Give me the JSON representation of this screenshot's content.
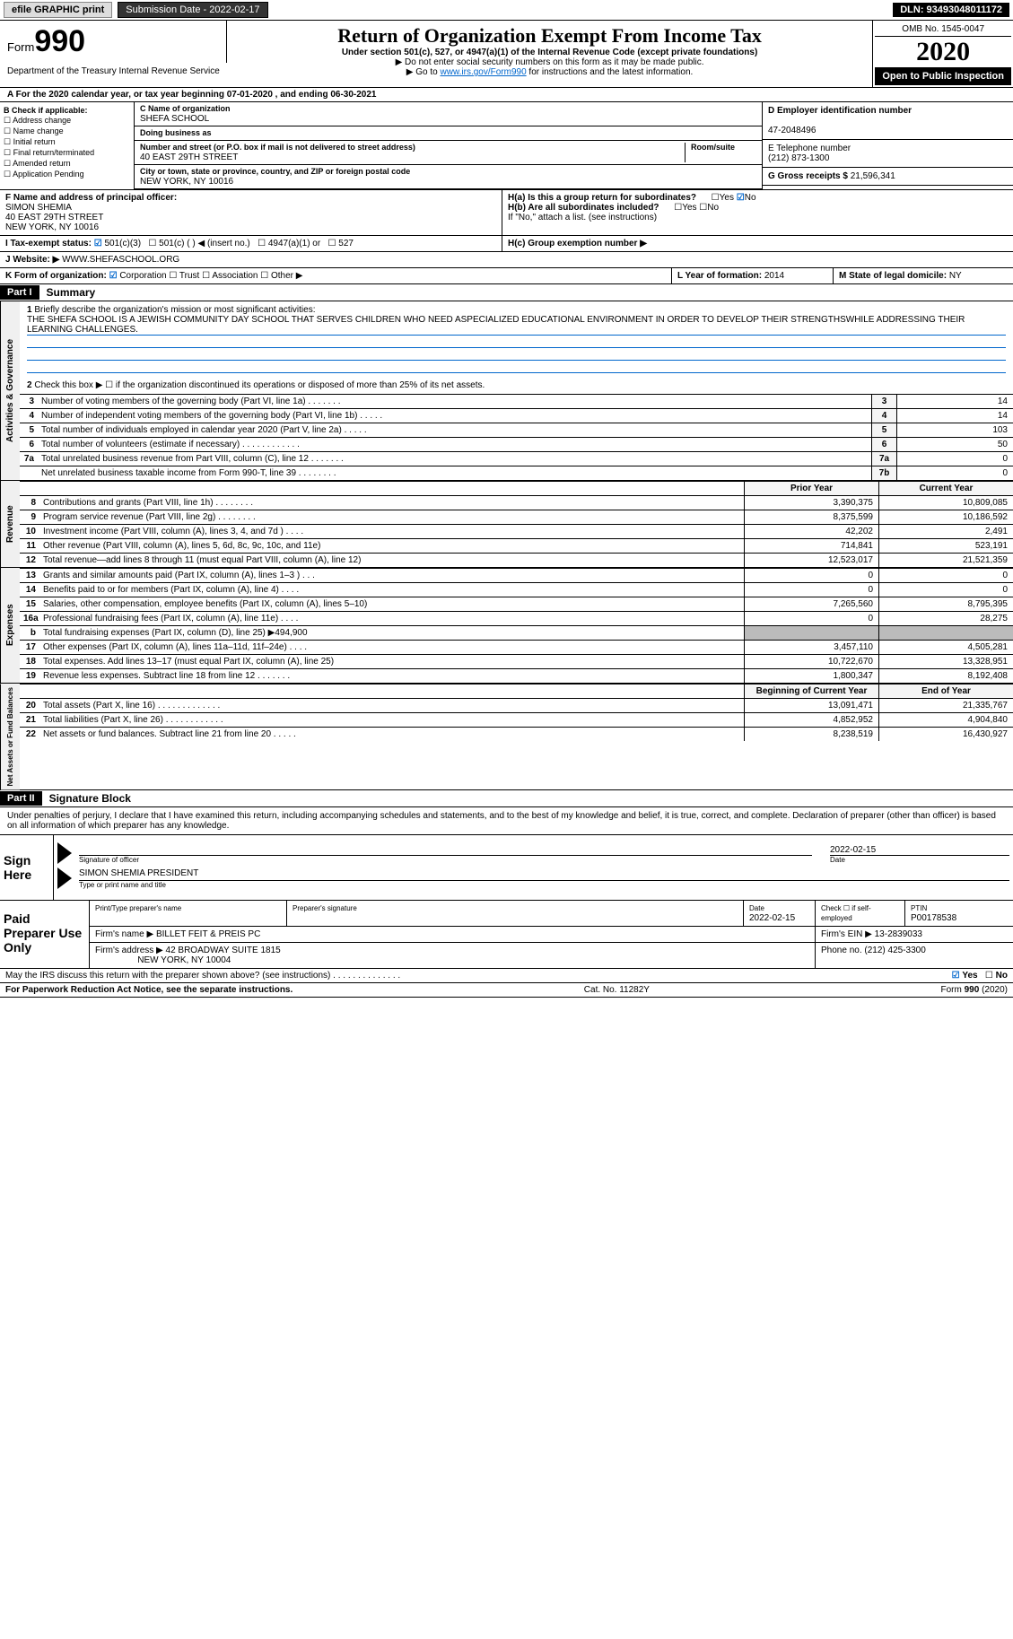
{
  "topbar": {
    "efile": "efile GRAPHIC print",
    "submission": "Submission Date - 2022-02-17",
    "dln": "DLN: 93493048011172"
  },
  "header": {
    "form_prefix": "Form",
    "form_num": "990",
    "dept": "Department of the Treasury Internal Revenue Service",
    "title": "Return of Organization Exempt From Income Tax",
    "subtitle": "Under section 501(c), 527, or 4947(a)(1) of the Internal Revenue Code (except private foundations)",
    "note1": "▶ Do not enter social security numbers on this form as it may be made public.",
    "note2_a": "▶ Go to ",
    "note2_link": "www.irs.gov/Form990",
    "note2_b": " for instructions and the latest information.",
    "omb": "OMB No. 1545-0047",
    "year": "2020",
    "open": "Open to Public Inspection"
  },
  "period": "For the 2020 calendar year, or tax year beginning 07-01-2020  , and ending 06-30-2021",
  "checks": {
    "hdr": "B Check if applicable:",
    "items": [
      "Address change",
      "Name change",
      "Initial return",
      "Final return/terminated",
      "Amended return",
      "Application Pending"
    ]
  },
  "entity": {
    "c_lbl": "C Name of organization",
    "name": "SHEFA SCHOOL",
    "dba_lbl": "Doing business as",
    "addr_lbl": "Number and street (or P.O. box if mail is not delivered to street address)",
    "room_lbl": "Room/suite",
    "addr": "40 EAST 29TH STREET",
    "city_lbl": "City or town, state or province, country, and ZIP or foreign postal code",
    "city": "NEW YORK, NY  10016",
    "d_lbl": "D Employer identification number",
    "ein": "47-2048496",
    "e_lbl": "E Telephone number",
    "phone": "(212) 873-1300",
    "g_lbl": "G Gross receipts $",
    "gross": "21,596,341"
  },
  "fg": {
    "f_lbl": "F Name and address of principal officer:",
    "f_name": "SIMON SHEMIA",
    "f_addr1": "40 EAST 29TH STREET",
    "f_addr2": "NEW YORK, NY  10016",
    "ha": "H(a)  Is this a group return for subordinates?",
    "hb": "H(b)  Are all subordinates included?",
    "hb_note": "If \"No,\" attach a list. (see instructions)",
    "hc": "H(c)  Group exemption number ▶",
    "yes": "Yes",
    "no": "No"
  },
  "i": {
    "lbl": "I  Tax-exempt status:",
    "a": "501(c)(3)",
    "b": "501(c) (  ) ◀ (insert no.)",
    "c": "4947(a)(1) or",
    "d": "527"
  },
  "j": {
    "lbl": "J  Website: ▶",
    "val": "WWW.SHEFASCHOOL.ORG"
  },
  "k": {
    "lbl": "K Form of organization:",
    "corp": "Corporation",
    "trust": "Trust",
    "assoc": "Association",
    "other": "Other ▶"
  },
  "l": {
    "lbl": "L Year of formation:",
    "val": "2014"
  },
  "m": {
    "lbl": "M State of legal domicile:",
    "val": "NY"
  },
  "part1": {
    "tag": "Part I",
    "title": "Summary"
  },
  "mission": {
    "n": "1",
    "lbl": "Briefly describe the organization's mission or most significant activities:",
    "text": "THE SHEFA SCHOOL IS A JEWISH COMMUNITY DAY SCHOOL THAT SERVES CHILDREN WHO NEED ASPECIALIZED EDUCATIONAL ENVIRONMENT IN ORDER TO DEVELOP THEIR STRENGTHSWHILE ADDRESSING THEIR LEARNING CHALLENGES."
  },
  "gov": {
    "tab": "Activities & Governance",
    "l2": "Check this box ▶ ☐  if the organization discontinued its operations or disposed of more than 25% of its net assets.",
    "rows": [
      {
        "n": "3",
        "d": "Number of voting members of the governing body (Part VI, line 1a)  .  .  .  .  .  .  .",
        "c": "3",
        "v": "14"
      },
      {
        "n": "4",
        "d": "Number of independent voting members of the governing body (Part VI, line 1b)  .  .  .  .  .",
        "c": "4",
        "v": "14"
      },
      {
        "n": "5",
        "d": "Total number of individuals employed in calendar year 2020 (Part V, line 2a)  .  .  .  .  .",
        "c": "5",
        "v": "103"
      },
      {
        "n": "6",
        "d": "Total number of volunteers (estimate if necessary)  .  .  .  .  .  .  .  .  .  .  .  .",
        "c": "6",
        "v": "50"
      },
      {
        "n": "7a",
        "d": "Total unrelated business revenue from Part VIII, column (C), line 12  .  .  .  .  .  .  .",
        "c": "7a",
        "v": "0"
      },
      {
        "n": "",
        "d": "Net unrelated business taxable income from Form 990-T, line 39  .  .  .  .  .  .  .  .",
        "c": "7b",
        "v": "0"
      }
    ]
  },
  "fin_hdr": {
    "py": "Prior Year",
    "cy": "Current Year"
  },
  "rev": {
    "tab": "Revenue",
    "rows": [
      {
        "n": "8",
        "d": "Contributions and grants (Part VIII, line 1h)  .  .  .  .  .  .  .  .",
        "py": "3,390,375",
        "cy": "10,809,085"
      },
      {
        "n": "9",
        "d": "Program service revenue (Part VIII, line 2g)  .  .  .  .  .  .  .  .",
        "py": "8,375,599",
        "cy": "10,186,592"
      },
      {
        "n": "10",
        "d": "Investment income (Part VIII, column (A), lines 3, 4, and 7d )  .  .  .  .",
        "py": "42,202",
        "cy": "2,491"
      },
      {
        "n": "11",
        "d": "Other revenue (Part VIII, column (A), lines 5, 6d, 8c, 9c, 10c, and 11e)",
        "py": "714,841",
        "cy": "523,191"
      },
      {
        "n": "12",
        "d": "Total revenue—add lines 8 through 11 (must equal Part VIII, column (A), line 12)",
        "py": "12,523,017",
        "cy": "21,521,359"
      }
    ]
  },
  "exp": {
    "tab": "Expenses",
    "rows": [
      {
        "n": "13",
        "d": "Grants and similar amounts paid (Part IX, column (A), lines 1–3 )  .  .  .",
        "py": "0",
        "cy": "0"
      },
      {
        "n": "14",
        "d": "Benefits paid to or for members (Part IX, column (A), line 4)  .  .  .  .",
        "py": "0",
        "cy": "0"
      },
      {
        "n": "15",
        "d": "Salaries, other compensation, employee benefits (Part IX, column (A), lines 5–10)",
        "py": "7,265,560",
        "cy": "8,795,395"
      },
      {
        "n": "16a",
        "d": "Professional fundraising fees (Part IX, column (A), line 11e)  .  .  .  .",
        "py": "0",
        "cy": "28,275"
      },
      {
        "n": "b",
        "d": "Total fundraising expenses (Part IX, column (D), line 25) ▶494,900",
        "py": "",
        "cy": "",
        "gray": true
      },
      {
        "n": "17",
        "d": "Other expenses (Part IX, column (A), lines 11a–11d, 11f–24e)  .  .  .  .",
        "py": "3,457,110",
        "cy": "4,505,281"
      },
      {
        "n": "18",
        "d": "Total expenses. Add lines 13–17 (must equal Part IX, column (A), line 25)",
        "py": "10,722,670",
        "cy": "13,328,951"
      },
      {
        "n": "19",
        "d": "Revenue less expenses. Subtract line 18 from line 12  .  .  .  .  .  .  .",
        "py": "1,800,347",
        "cy": "8,192,408"
      }
    ]
  },
  "na_hdr": {
    "py": "Beginning of Current Year",
    "cy": "End of Year"
  },
  "na": {
    "tab": "Net Assets or Fund Balances",
    "rows": [
      {
        "n": "20",
        "d": "Total assets (Part X, line 16)  .  .  .  .  .  .  .  .  .  .  .  .  .",
        "py": "13,091,471",
        "cy": "21,335,767"
      },
      {
        "n": "21",
        "d": "Total liabilities (Part X, line 26)  .  .  .  .  .  .  .  .  .  .  .  .",
        "py": "4,852,952",
        "cy": "4,904,840"
      },
      {
        "n": "22",
        "d": "Net assets or fund balances. Subtract line 21 from line 20  .  .  .  .  .",
        "py": "8,238,519",
        "cy": "16,430,927"
      }
    ]
  },
  "part2": {
    "tag": "Part II",
    "title": "Signature Block"
  },
  "sig": {
    "decl": "Under penalties of perjury, I declare that I have examined this return, including accompanying schedules and statements, and to the best of my knowledge and belief, it is true, correct, and complete. Declaration of preparer (other than officer) is based on all information of which preparer has any knowledge.",
    "here": "Sign Here",
    "sig_lbl": "Signature of officer",
    "date_lbl": "Date",
    "date": "2022-02-15",
    "name": "SIMON SHEMIA  PRESIDENT",
    "name_lbl": "Type or print name and title"
  },
  "prep": {
    "lbl": "Paid Preparer Use Only",
    "r1": {
      "a": "Print/Type preparer's name",
      "b": "Preparer's signature",
      "c": "Date",
      "cv": "2022-02-15",
      "d": "Check ☐ if self-employed",
      "e": "PTIN",
      "ev": "P00178538"
    },
    "r2": {
      "a": "Firm's name    ▶",
      "av": "BILLET FEIT & PREIS PC",
      "b": "Firm's EIN ▶",
      "bv": "13-2839033"
    },
    "r3": {
      "a": "Firm's address ▶",
      "av": "42 BROADWAY SUITE 1815",
      "av2": "NEW YORK, NY  10004",
      "b": "Phone no.",
      "bv": "(212) 425-3300"
    }
  },
  "discuss": {
    "txt": "May the IRS discuss this return with the preparer shown above? (see instructions)  .  .  .  .  .  .  .  .  .  .  .  .  .  .",
    "yes": "Yes",
    "no": "No"
  },
  "footer": {
    "a": "For Paperwork Reduction Act Notice, see the separate instructions.",
    "b": "Cat. No. 11282Y",
    "c": "Form 990 (2020)"
  }
}
